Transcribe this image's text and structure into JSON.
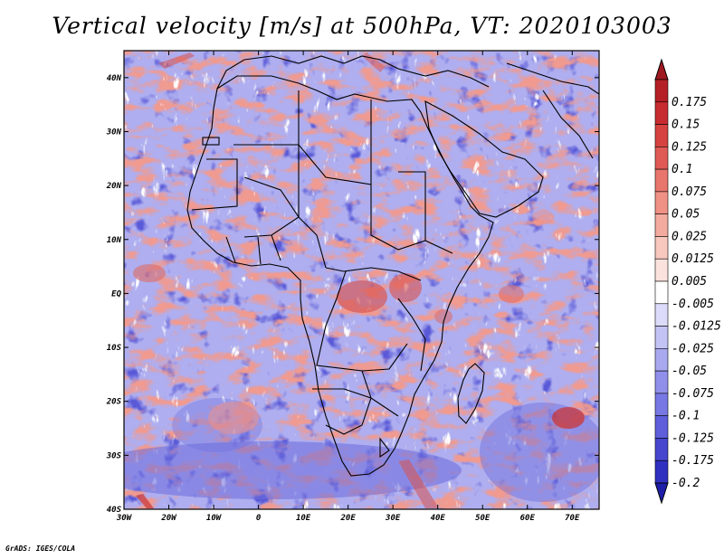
{
  "title": "Vertical velocity [m/s] at 500hPa, VT: 2020103003",
  "credit": "GrADS: IGES/COLA",
  "map": {
    "lon_range": [
      -30,
      76
    ],
    "lat_range": [
      -40,
      45
    ],
    "lat_ticks": [
      {
        "value": 40,
        "label": "40N"
      },
      {
        "value": 30,
        "label": "30N"
      },
      {
        "value": 20,
        "label": "20N"
      },
      {
        "value": 10,
        "label": "10N"
      },
      {
        "value": 0,
        "label": "EQ"
      },
      {
        "value": -10,
        "label": "10S"
      },
      {
        "value": -20,
        "label": "20S"
      },
      {
        "value": -30,
        "label": "30S"
      },
      {
        "value": -40,
        "label": "40S"
      }
    ],
    "lon_ticks": [
      {
        "value": -30,
        "label": "30W"
      },
      {
        "value": -20,
        "label": "20W"
      },
      {
        "value": -10,
        "label": "10W"
      },
      {
        "value": 0,
        "label": "0"
      },
      {
        "value": 10,
        "label": "10E"
      },
      {
        "value": 20,
        "label": "20E"
      },
      {
        "value": 30,
        "label": "30E"
      },
      {
        "value": 40,
        "label": "40E"
      },
      {
        "value": 50,
        "label": "50E"
      },
      {
        "value": 60,
        "label": "60E"
      },
      {
        "value": 70,
        "label": "70E"
      }
    ]
  },
  "colorbar": {
    "levels": [
      {
        "label": "0.175",
        "color": "#b51f26"
      },
      {
        "label": "0.15",
        "color": "#c72c30"
      },
      {
        "label": "0.125",
        "color": "#d6423f"
      },
      {
        "label": "0.1",
        "color": "#e05a55"
      },
      {
        "label": "0.075",
        "color": "#e8766d"
      },
      {
        "label": "0.05",
        "color": "#ef9185"
      },
      {
        "label": "0.025",
        "color": "#f4ab9f"
      },
      {
        "label": "0.0125",
        "color": "#f8c7bd"
      },
      {
        "label": "0.005",
        "color": "#fce2dc"
      },
      {
        "label": "-0.005",
        "color": "#ffffff"
      },
      {
        "label": "-0.0125",
        "color": "#dcdcfa"
      },
      {
        "label": "-0.025",
        "color": "#c3c3f5"
      },
      {
        "label": "-0.05",
        "color": "#a9a9f0"
      },
      {
        "label": "-0.075",
        "color": "#9090eb"
      },
      {
        "label": "-0.1",
        "color": "#7878e4"
      },
      {
        "label": "-0.125",
        "color": "#5f5fdb"
      },
      {
        "label": "-0.175",
        "color": "#4646cf"
      },
      {
        "label": "-0.2",
        "color": "#3030c0"
      }
    ],
    "top_cap_color": "#a01820",
    "bottom_cap_color": "#1e1ea8"
  }
}
